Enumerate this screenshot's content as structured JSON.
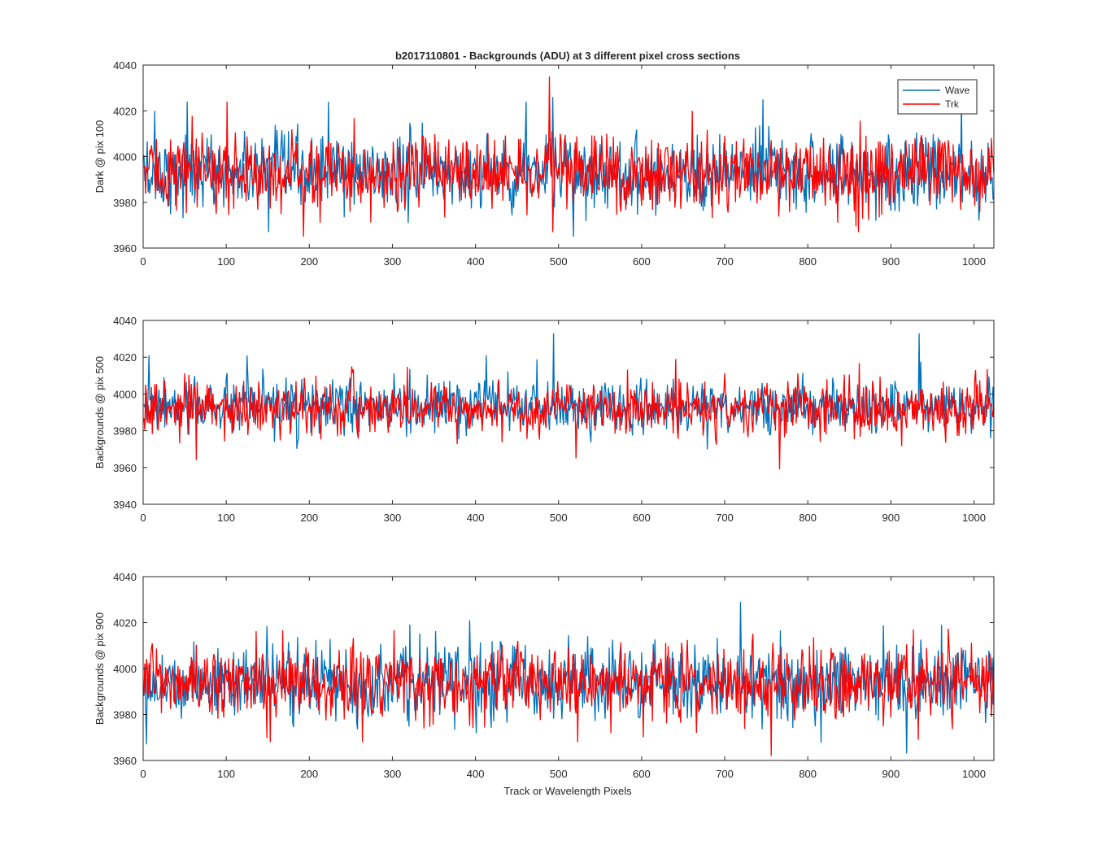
{
  "chart_data": {
    "title": "b2017110801 - Backgrounds (ADU) at 3 different pixel cross sections",
    "xlabel": "Track or Wavelength Pixels",
    "legend": {
      "placement": "top-right",
      "entries": [
        "Wave",
        "Trk"
      ]
    },
    "colors": {
      "Wave": "#0072BD",
      "Trk": "#FF0000"
    },
    "grid": false,
    "panels": [
      {
        "type": "line",
        "ylabel": "Dark @ pix 100",
        "xlim": [
          0,
          1024
        ],
        "ylim": [
          3960,
          4040
        ],
        "xticks": [
          0,
          100,
          200,
          300,
          400,
          500,
          600,
          700,
          800,
          900,
          1000
        ],
        "yticks": [
          3960,
          3980,
          4000,
          4020,
          4040
        ],
        "series": [
          {
            "name": "Wave",
            "n": 1024,
            "mean": 3993,
            "std": 8,
            "spikes": [
              [
                13,
                4020
              ],
              [
                52,
                4024
              ],
              [
                222,
                4024
              ],
              [
                460,
                4024
              ],
              [
                492,
                4026
              ],
              [
                517,
                3965
              ],
              [
                745,
                4025
              ],
              [
                984,
                4025
              ],
              [
                1005,
                3972
              ],
              [
                150,
                3967
              ]
            ]
          },
          {
            "name": "Trk",
            "n": 1024,
            "mean": 3993,
            "std": 8,
            "spikes": [
              [
                100,
                4024
              ],
              [
                192,
                3965
              ],
              [
                488,
                4035
              ],
              [
                492,
                3967
              ],
              [
                660,
                4020
              ],
              [
                860,
                3967
              ],
              [
                870,
                3984
              ]
            ]
          }
        ]
      },
      {
        "type": "line",
        "ylabel": "Backgrounds @ pix 500",
        "xlim": [
          0,
          1024
        ],
        "ylim": [
          3940,
          4040
        ],
        "xticks": [
          0,
          100,
          200,
          300,
          400,
          500,
          600,
          700,
          800,
          900,
          1000
        ],
        "yticks": [
          3940,
          3960,
          3980,
          4000,
          4020,
          4040
        ],
        "series": [
          {
            "name": "Wave",
            "n": 1024,
            "mean": 3993,
            "std": 7,
            "spikes": [
              [
                6,
                4021
              ],
              [
                124,
                4021
              ],
              [
                412,
                4021
              ],
              [
                493,
                4033
              ],
              [
                933,
                4033
              ]
            ]
          },
          {
            "name": "Trk",
            "n": 1024,
            "mean": 3992,
            "std": 7,
            "spikes": [
              [
                63,
                3964
              ],
              [
                520,
                3965
              ],
              [
                765,
                3959
              ],
              [
                640,
                4019
              ]
            ]
          }
        ]
      },
      {
        "type": "line",
        "ylabel": "Backgrounds @ pix 900",
        "xlim": [
          0,
          1024
        ],
        "ylim": [
          3960,
          4040
        ],
        "xticks": [
          0,
          100,
          200,
          300,
          400,
          500,
          600,
          700,
          800,
          900,
          1000
        ],
        "yticks": [
          3960,
          3980,
          4000,
          4020,
          4040
        ],
        "series": [
          {
            "name": "Wave",
            "n": 1024,
            "mean": 3994,
            "std": 8,
            "spikes": [
              [
                392,
                4021
              ],
              [
                718,
                4029
              ],
              [
                918,
                3963
              ],
              [
                960,
                4019
              ]
            ]
          },
          {
            "name": "Trk",
            "n": 1024,
            "mean": 3994,
            "std": 8,
            "spikes": [
              [
                152,
                3968
              ],
              [
                522,
                3968
              ],
              [
                755,
                3962
              ],
              [
                932,
                3969
              ]
            ]
          }
        ]
      }
    ]
  }
}
